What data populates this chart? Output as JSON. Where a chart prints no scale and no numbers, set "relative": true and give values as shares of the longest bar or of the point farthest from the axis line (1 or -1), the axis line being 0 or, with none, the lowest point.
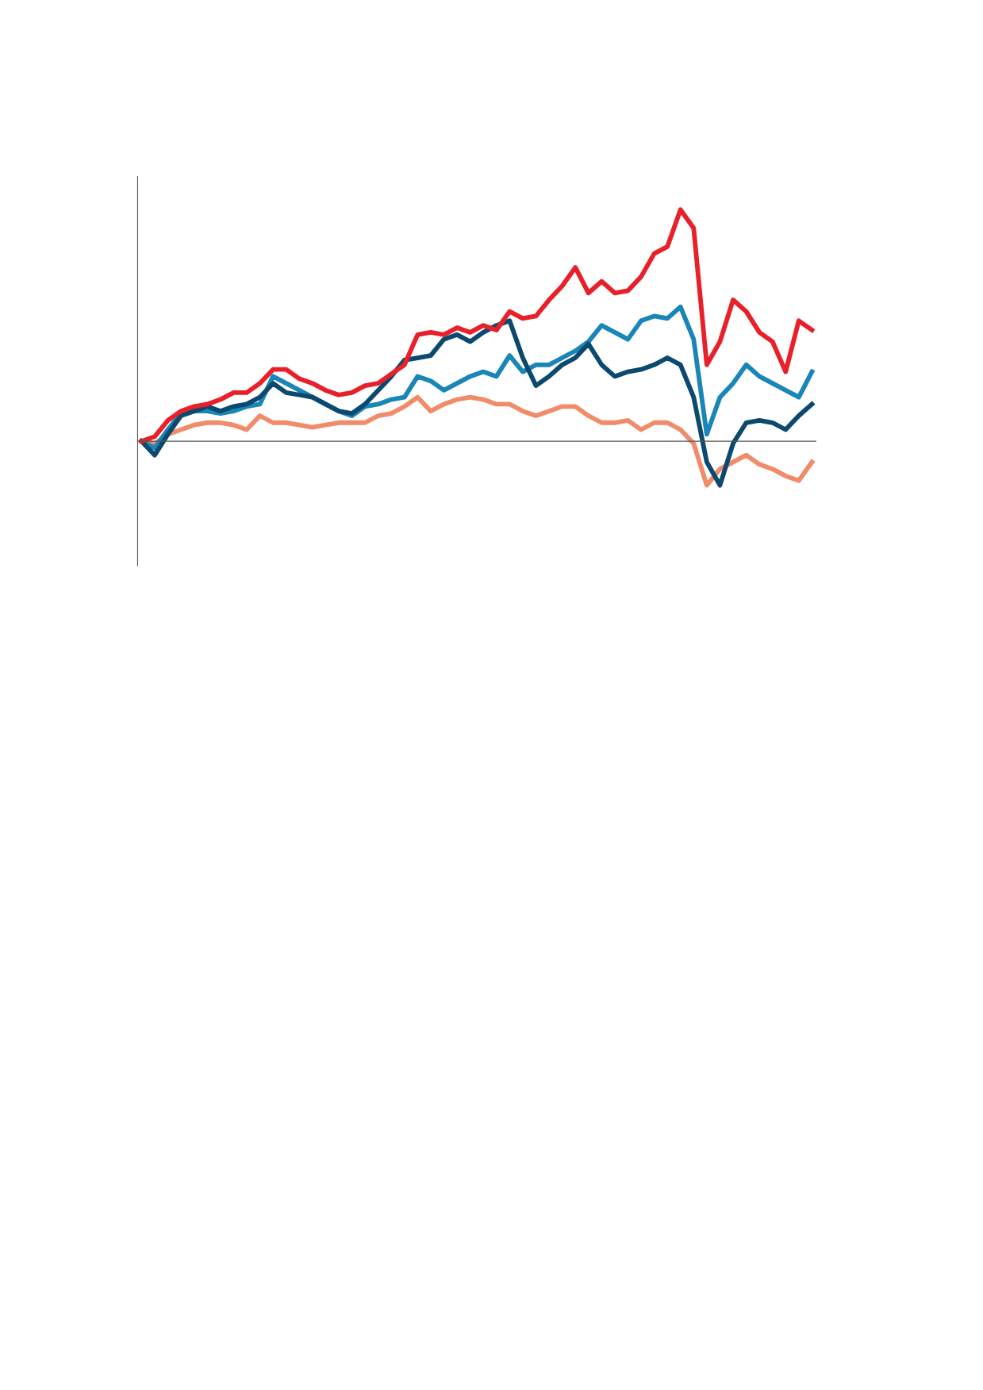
{
  "chart_data": {
    "type": "line",
    "relative": true,
    "legend": false,
    "grid": false,
    "marker": "none",
    "line_style": "solid",
    "categories": [
      null,
      null,
      null,
      null,
      null,
      null,
      null,
      null,
      null,
      null,
      null,
      null,
      null,
      null,
      null,
      null,
      null,
      null,
      null,
      null,
      null,
      null,
      null,
      null,
      null,
      null,
      null,
      null,
      null,
      null,
      null,
      null,
      null,
      null,
      null,
      null,
      null,
      null,
      null,
      null,
      null,
      null,
      null,
      null,
      null,
      null,
      null,
      null,
      null,
      null,
      null,
      null
    ],
    "series": [
      {
        "color": "#f08c6a",
        "values": [
          0,
          -0.01,
          0.03,
          0.05,
          0.07,
          0.08,
          0.08,
          0.07,
          0.05,
          0.11,
          0.08,
          0.08,
          0.07,
          0.06,
          0.07,
          0.08,
          0.08,
          0.08,
          0.11,
          0.12,
          0.15,
          0.19,
          0.13,
          0.16,
          0.18,
          0.19,
          0.18,
          0.16,
          0.16,
          0.13,
          0.11,
          0.13,
          0.15,
          0.15,
          0.11,
          0.08,
          0.08,
          0.09,
          0.05,
          0.08,
          0.08,
          0.05,
          -0.01,
          -0.19,
          -0.12,
          -0.09,
          -0.06,
          -0.1,
          -0.12,
          -0.15,
          -0.17,
          -0.09
        ]
      },
      {
        "color": "#1a86b8",
        "values": [
          0,
          -0.03,
          0.05,
          0.12,
          0.13,
          0.13,
          0.12,
          0.13,
          0.15,
          0.16,
          0.28,
          0.25,
          0.22,
          0.19,
          0.16,
          0.13,
          0.11,
          0.15,
          0.16,
          0.18,
          0.19,
          0.28,
          0.26,
          0.22,
          0.25,
          0.28,
          0.3,
          0.28,
          0.37,
          0.3,
          0.33,
          0.33,
          0.36,
          0.39,
          0.43,
          0.5,
          0.47,
          0.44,
          0.52,
          0.54,
          0.53,
          0.58,
          0.44,
          0.03,
          0.19,
          0.25,
          0.33,
          0.28,
          0.25,
          0.22,
          0.19,
          0.3
        ]
      },
      {
        "color": "#0b4a6e",
        "values": [
          0,
          -0.06,
          0.03,
          0.11,
          0.13,
          0.15,
          0.13,
          0.15,
          0.16,
          0.19,
          0.25,
          0.21,
          0.2,
          0.19,
          0.16,
          0.13,
          0.12,
          0.16,
          0.22,
          0.28,
          0.35,
          0.36,
          0.37,
          0.44,
          0.46,
          0.43,
          0.47,
          0.5,
          0.52,
          0.36,
          0.24,
          0.28,
          0.33,
          0.36,
          0.42,
          0.33,
          0.28,
          0.3,
          0.31,
          0.33,
          0.36,
          0.33,
          0.19,
          -0.09,
          -0.19,
          -0.01,
          0.08,
          0.09,
          0.08,
          0.05,
          0.11,
          0.16
        ]
      },
      {
        "color": "#e8202a",
        "values": [
          0,
          0.02,
          0.09,
          0.13,
          0.15,
          0.16,
          0.18,
          0.21,
          0.21,
          0.25,
          0.31,
          0.31,
          0.27,
          0.25,
          0.22,
          0.2,
          0.21,
          0.24,
          0.25,
          0.29,
          0.33,
          0.46,
          0.47,
          0.46,
          0.49,
          0.47,
          0.5,
          0.48,
          0.56,
          0.53,
          0.54,
          0.61,
          0.67,
          0.75,
          0.64,
          0.69,
          0.64,
          0.65,
          0.71,
          0.81,
          0.84,
          1,
          0.92,
          0.33,
          0.43,
          0.61,
          0.56,
          0.47,
          0.43,
          0.3,
          0.52,
          0.48
        ]
      }
    ]
  }
}
